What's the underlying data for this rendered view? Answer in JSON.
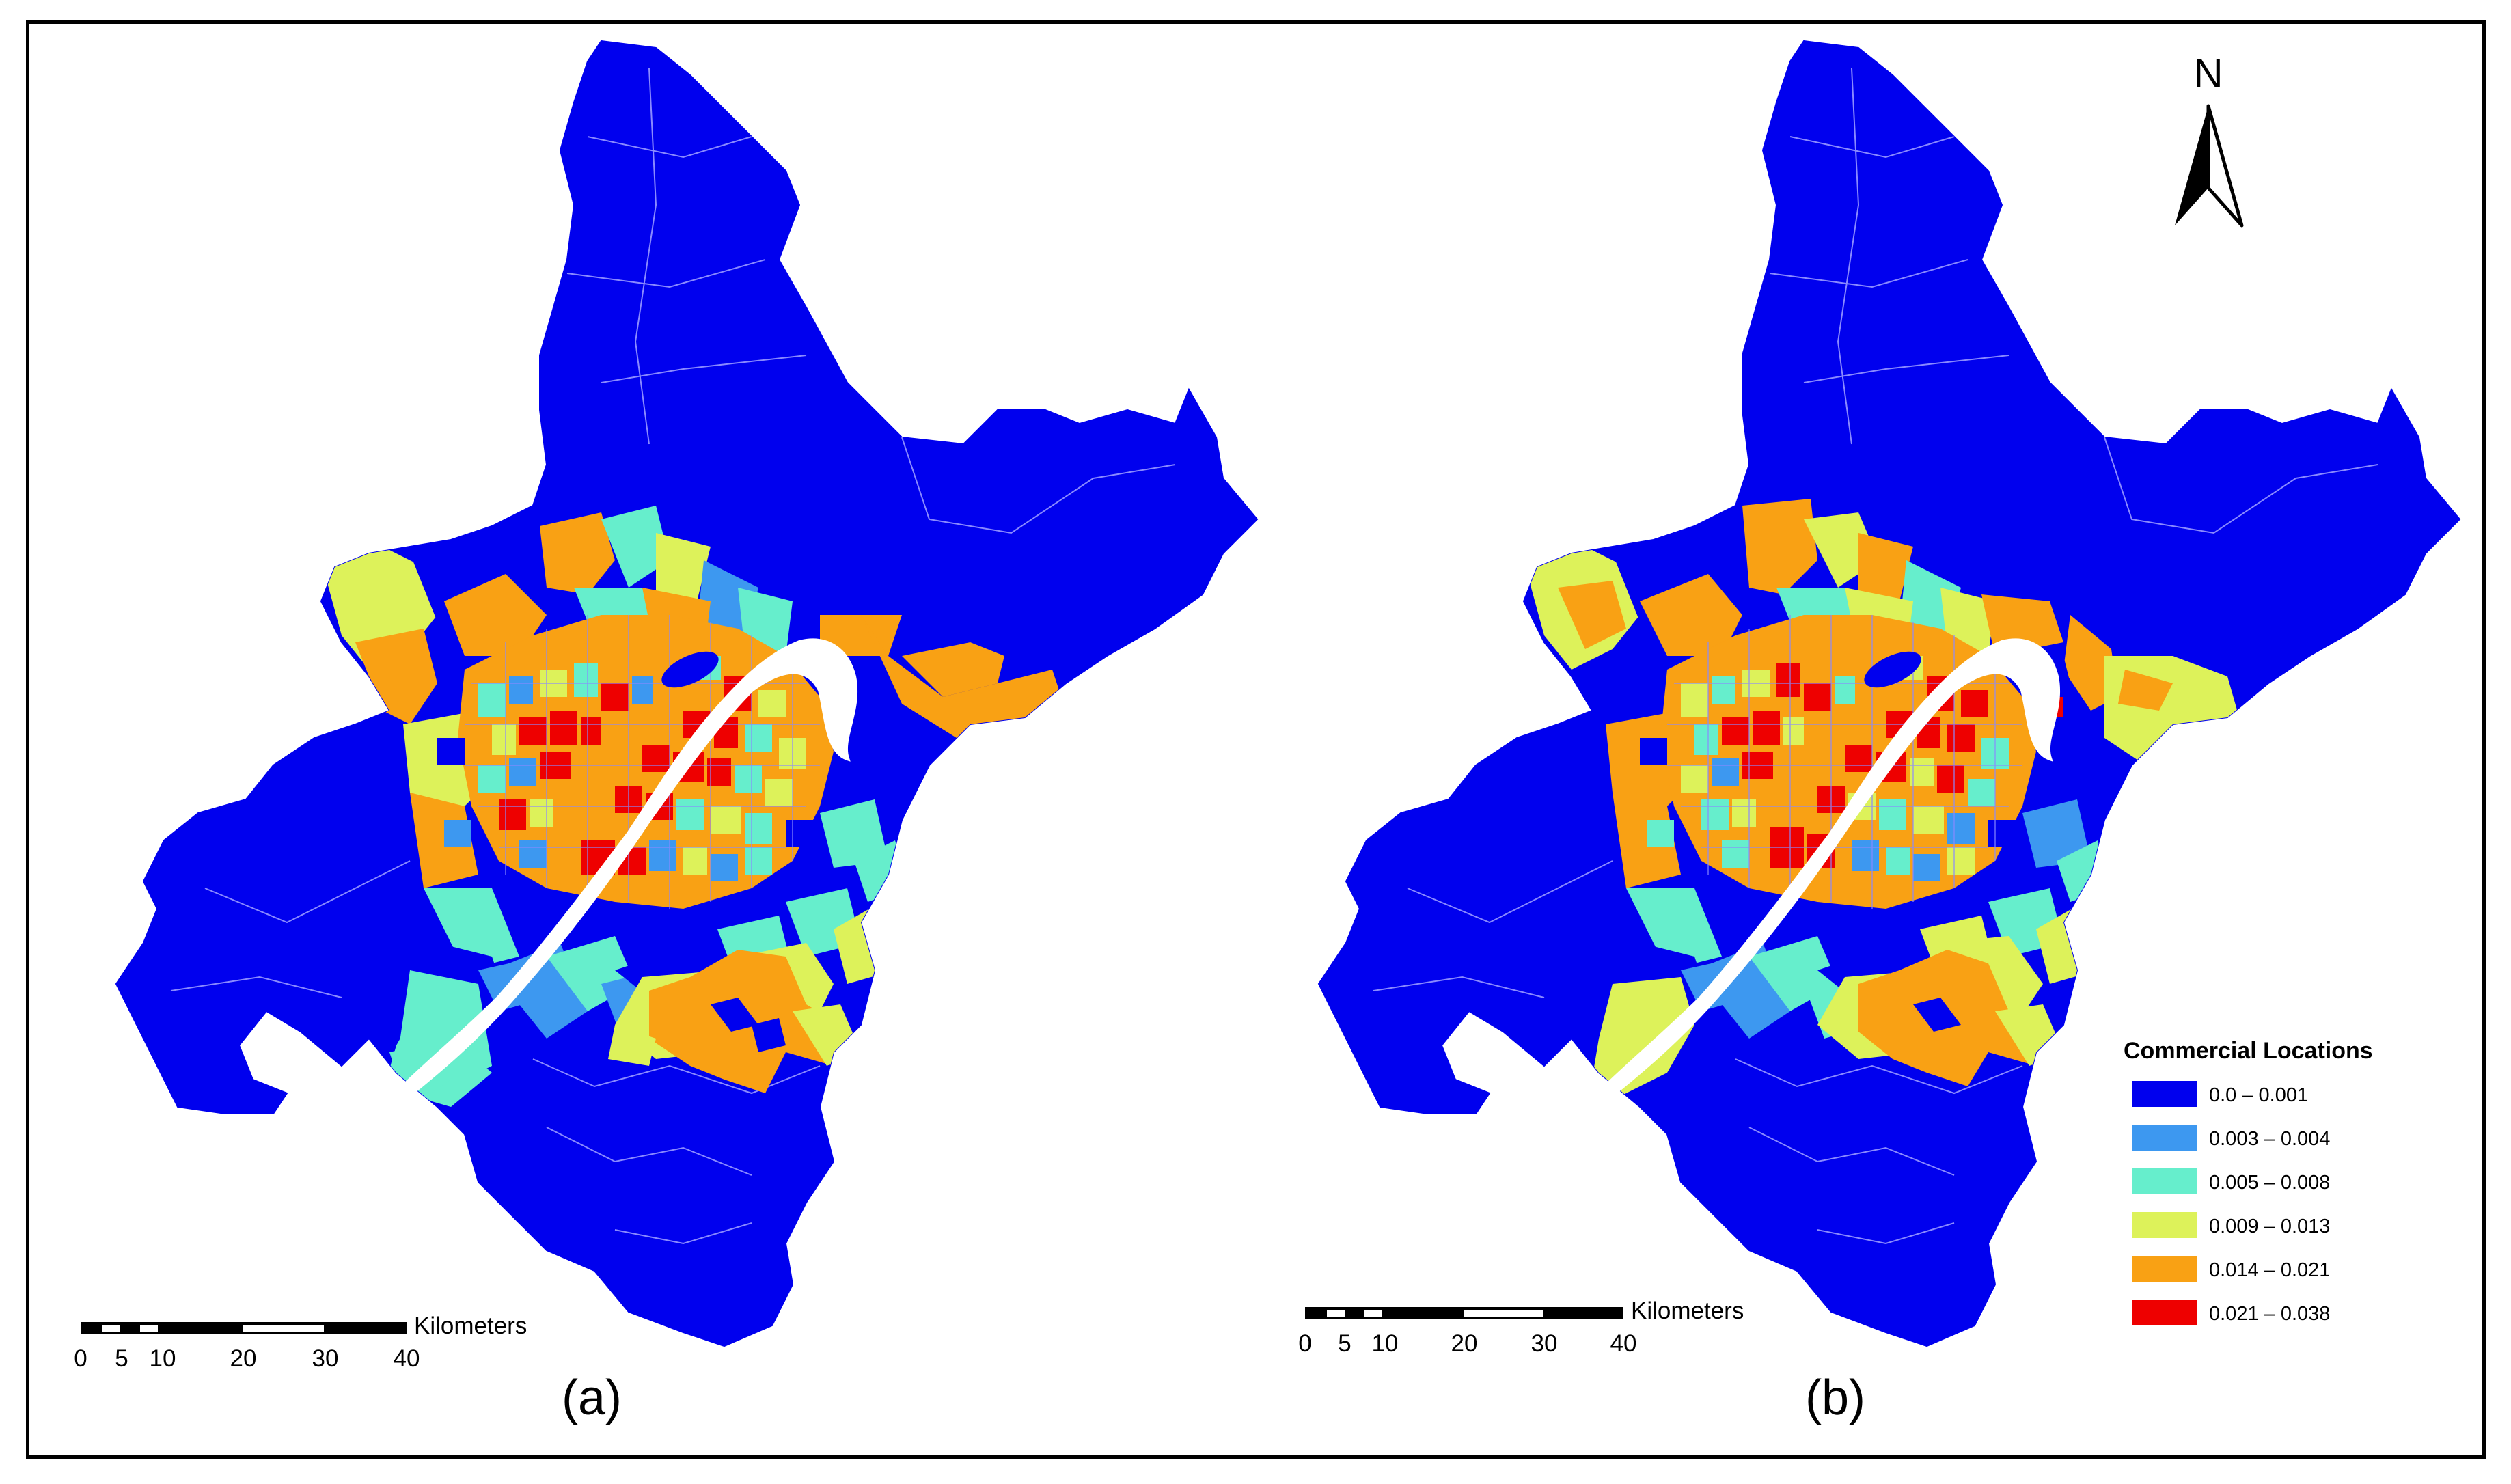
{
  "colors": {
    "c0": "#0000ee",
    "c1": "#3d98f0",
    "c2": "#66eecc",
    "c3": "#ddf25a",
    "c4": "#f9a114",
    "c5": "#ee0000",
    "river": "#ffffff",
    "boundary": "#8a8aff"
  },
  "panels": [
    {
      "id": "a",
      "label": "(a)"
    },
    {
      "id": "b",
      "label": "(b)"
    }
  ],
  "scale_bar": {
    "unit": "Kilometers",
    "ticks": [
      "0",
      "5",
      "10",
      "20",
      "30",
      "40"
    ]
  },
  "north_arrow": {
    "label": "N"
  },
  "legend": {
    "title": "Commercial Locations",
    "classes": [
      {
        "label": "0.0 – 0.001",
        "color": "#0000ee"
      },
      {
        "label": "0.003 – 0.004",
        "color": "#3d98f0"
      },
      {
        "label": "0.005 – 0.008",
        "color": "#66eecc"
      },
      {
        "label": "0.009 – 0.013",
        "color": "#ddf25a"
      },
      {
        "label": "0.014 – 0.021",
        "color": "#f9a114"
      },
      {
        "label": "0.021 – 0.038",
        "color": "#ee0000"
      }
    ]
  }
}
